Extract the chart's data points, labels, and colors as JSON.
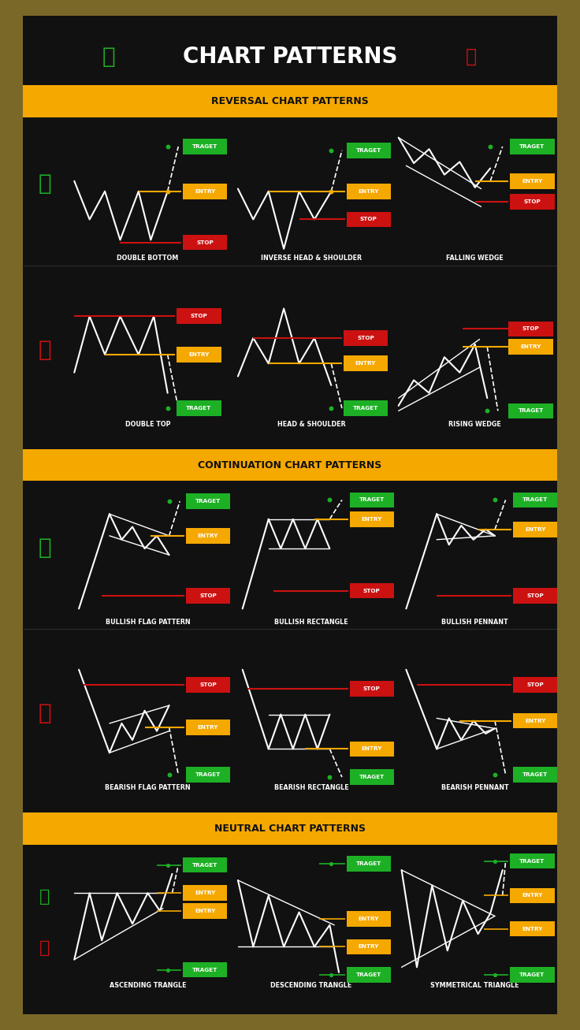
{
  "bg_outer": "#7a6828",
  "bg_main": "#111111",
  "orange_bar": "#F5A800",
  "title": "CHART PATTERNS",
  "white": "#FFFFFF",
  "green": "#1DB025",
  "orange": "#F5A800",
  "red": "#CC1111",
  "black": "#111111",
  "section_headers": [
    "REVERSAL CHART PATTERNS",
    "CONTINUATION CHART PATTERNS",
    "NEUTRAL CHART PATTERNS"
  ],
  "row_labels": [
    [
      "DOUBLE BOTTOM",
      "INVERSE HEAD & SHOULDER",
      "FALLING WEDGE"
    ],
    [
      "DOUBLE TOP",
      "HEAD & SHOULDER",
      "RISING WEDGE"
    ],
    [
      "BULLISH FLAG PATTERN",
      "BULLISH RECTANGLE",
      "BULLISH PENNANT"
    ],
    [
      "BEARISH FLAG PATTERN",
      "BEARISH RECTANGLE",
      "BEARISH PENNANT"
    ],
    [
      "ASCENDING TRANGLE",
      "DESCENDING TRANGLE",
      "SYMMETRICAL TRIANGLE"
    ]
  ]
}
